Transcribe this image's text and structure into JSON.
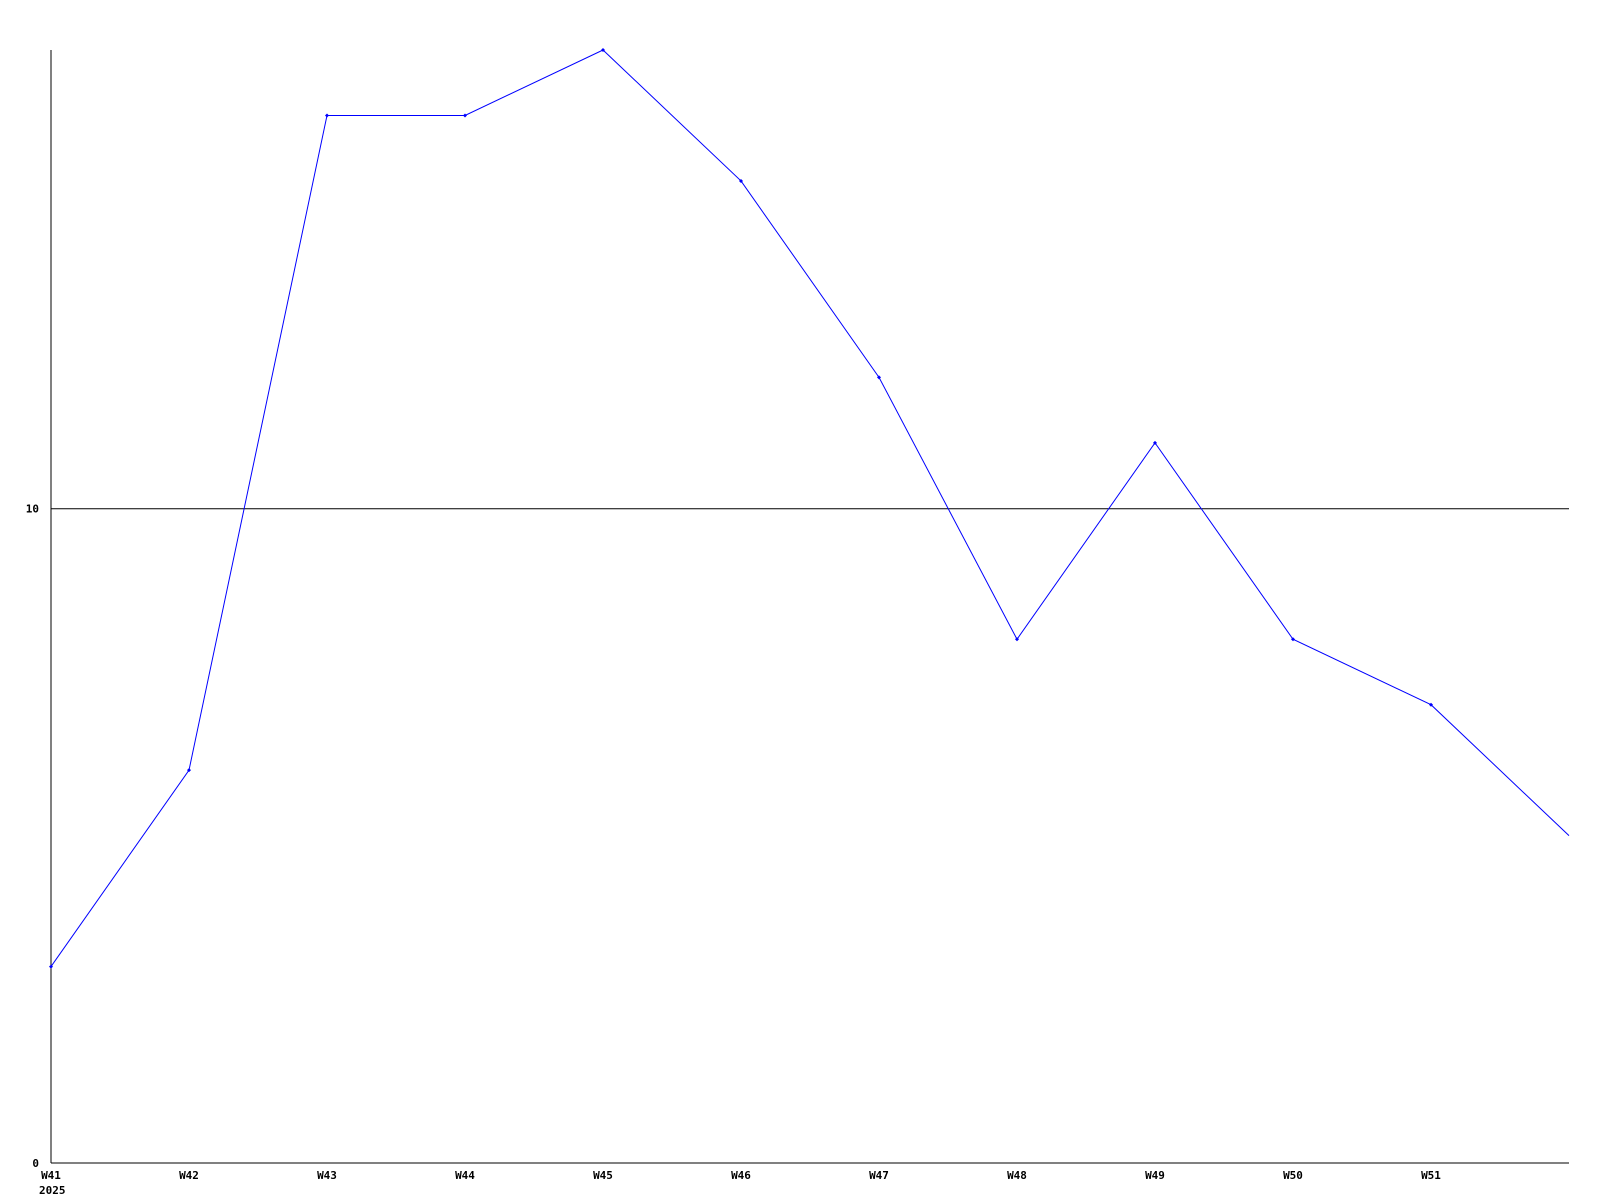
{
  "chart_data": {
    "type": "line",
    "title": "",
    "xlabel": "",
    "ylabel": "",
    "x": [
      "W41",
      "W42",
      "W43",
      "W44",
      "W45",
      "W46",
      "W47",
      "W48",
      "W49",
      "W50",
      "W51",
      ""
    ],
    "x_sublabel": "2025",
    "series": [
      {
        "values": [
          3,
          6,
          16,
          16,
          17,
          15,
          12,
          8,
          11,
          8,
          7,
          5
        ],
        "color": "#0000ff",
        "markers": true
      }
    ],
    "ylim": [
      0,
      17
    ],
    "y_ticks": [
      0,
      10
    ],
    "y_tick_labels": [
      "0",
      "10"
    ],
    "grid": "horizontal line at 10 only",
    "legend": "none",
    "axis_color": "#000000"
  }
}
